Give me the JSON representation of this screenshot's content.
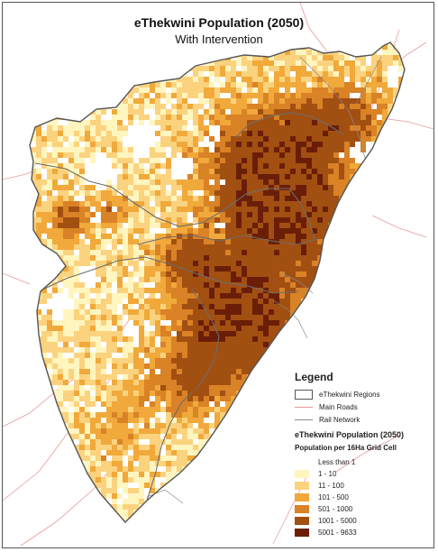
{
  "title": "eThekwini Population (2050)",
  "subtitle": "With Intervention",
  "legend": {
    "heading": "Legend",
    "items": [
      {
        "label": "eThekwini Regions",
        "symbol": "region-outline-icon"
      },
      {
        "label": "Main Roads",
        "symbol": "road-line-icon",
        "color": "#e89a9a"
      },
      {
        "label": "Rail Network",
        "symbol": "rail-line-icon",
        "color": "#8a8a8a"
      }
    ],
    "layer_title": "eThekwini Population (2050)",
    "layer_subtitle": "Population per 16Ha Grid Cell",
    "classes": [
      {
        "label": "Less than 1",
        "color": "#ffffff"
      },
      {
        "label": "1 - 10",
        "color": "#fff5bf"
      },
      {
        "label": "11 - 100",
        "color": "#fbd27e"
      },
      {
        "label": "101 - 500",
        "color": "#f0a93a"
      },
      {
        "label": "501 - 1000",
        "color": "#d98226"
      },
      {
        "label": "1001 - 5000",
        "color": "#a24f12"
      },
      {
        "label": "5001 - 9633",
        "color": "#6b1e07"
      }
    ]
  }
}
